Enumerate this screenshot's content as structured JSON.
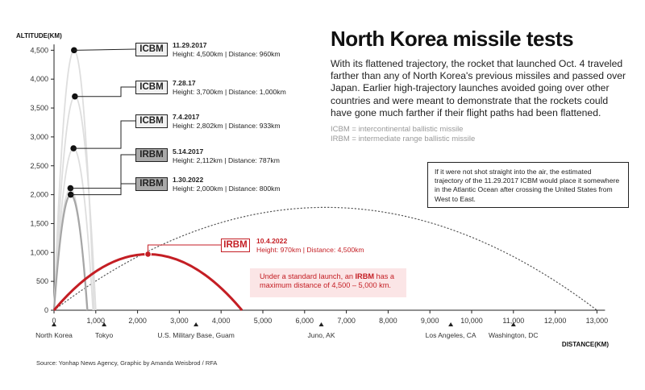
{
  "title": "North Korea missile tests",
  "description": "With its flattened trajectory, the rocket that launched Oct. 4 traveled farther than any of North Korea's previous missiles and passed over Japan. Earlier high-trajectory launches avoided going over other countries and were meant to demonstrate that the rockets could have gone much farther if their flight paths had been flattened.",
  "definitions": [
    "ICBM = intercontinental ballistic missile",
    "IRBM = intermediate range ballistic missile"
  ],
  "callout": "If it were not shot straight into the air, the estimated trajectory of the 11.29.2017 ICBM would place it somewhere in the Atlantic Ocean after crossing the United States from West to East.",
  "note": {
    "pre": "Under a standard launch, an ",
    "bold": "IRBM",
    "post": " has a maximum distance of 4,500 – 5,000 km."
  },
  "source": "Source: Yonhap News Agency, Graphic by Amanda Weisbrod / RFA",
  "colors": {
    "icbm_box": "#f1f1f1",
    "irbm_box": "#a9a9a9",
    "arc_gray": "#d6d6d6",
    "arc_dark": "#a0a0a0",
    "red": "#c41e24",
    "note_bg": "#fbe5e6"
  },
  "chart_data": {
    "type": "line",
    "xlabel": "DISTANCE(KM)",
    "ylabel": "ALTITUDE(KM)",
    "xlim": [
      0,
      13000
    ],
    "ylim": [
      0,
      4500
    ],
    "x_ticks": [
      "0",
      "1,000",
      "2,000",
      "3,000",
      "4,000",
      "5,000",
      "6,000",
      "7,000",
      "8,000",
      "9,000",
      "10,000",
      "11,000",
      "12,000",
      "13,000"
    ],
    "y_ticks": [
      "0",
      "500",
      "1,000",
      "1,500",
      "2,000",
      "2,500",
      "3,000",
      "3,500",
      "4,000",
      "4,500"
    ],
    "grid": false,
    "locations": [
      {
        "name": "North Korea",
        "x": 0
      },
      {
        "name": "Tokyo",
        "x": 1200
      },
      {
        "name": "U.S. Military Base, Guam",
        "x": 3400
      },
      {
        "name": "Juno, AK",
        "x": 6400
      },
      {
        "name": "Los Angeles, CA",
        "x": 9500
      },
      {
        "name": "Washington, DC",
        "x": 11000
      }
    ],
    "series": [
      {
        "date": "11.29.2017",
        "type": "ICBM",
        "height_km": 4500,
        "distance_km": 960,
        "label": "Height: 4,500km | Distance: 960km"
      },
      {
        "date": "7.28.17",
        "type": "ICBM",
        "height_km": 3700,
        "distance_km": 1000,
        "label": "Height: 3,700km | Distance: 1,000km"
      },
      {
        "date": "7.4.2017",
        "type": "ICBM",
        "height_km": 2802,
        "distance_km": 933,
        "label": "Height: 2,802km | Distance: 933km"
      },
      {
        "date": "5.14.2017",
        "type": "IRBM",
        "height_km": 2112,
        "distance_km": 787,
        "label": "Height: 2,112km | Distance: 787km"
      },
      {
        "date": "1.30.2022",
        "type": "IRBM",
        "height_km": 2000,
        "distance_km": 800,
        "label": "Height: 2,000km | Distance: 800km"
      },
      {
        "date": "10.4.2022",
        "type": "IRBM",
        "height_km": 970,
        "distance_km": 4500,
        "label": "Height: 970km | Distance: 4,500km"
      }
    ],
    "estimated_trajectory": {
      "height_km": 1780,
      "distance_km": 13000
    }
  }
}
